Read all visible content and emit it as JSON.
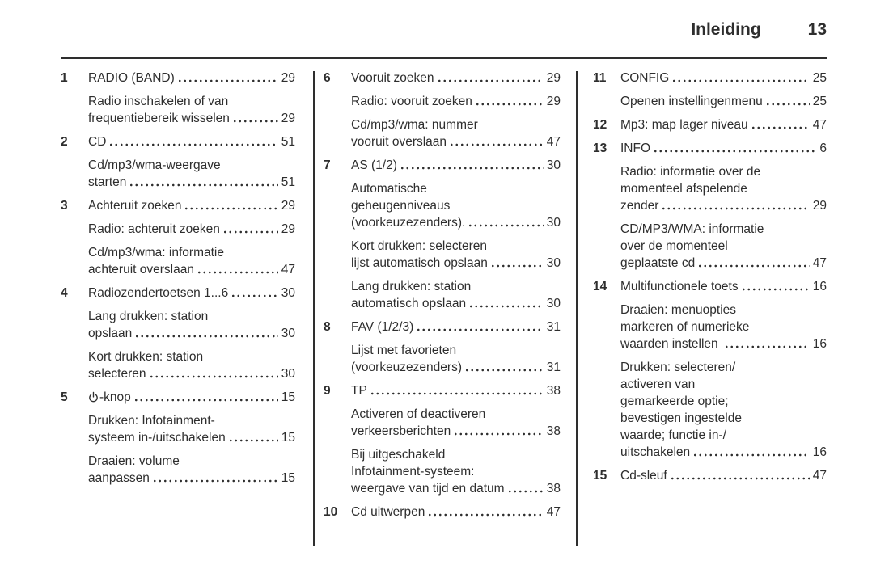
{
  "page_header": {
    "title": "Inleiding",
    "page_number": "13"
  },
  "colors": {
    "text": "#2e2e2e",
    "background": "#ffffff",
    "rule": "#2e2e2e"
  },
  "columns": [
    {
      "items": [
        {
          "num": "1",
          "lines": [
            "RADIO (BAND)"
          ],
          "page": "29"
        },
        {
          "lines": [
            "Radio inschakelen of van",
            "frequentiebereik wisselen"
          ],
          "page": "29"
        },
        {
          "num": "2",
          "lines": [
            "CD"
          ],
          "page": "51"
        },
        {
          "lines": [
            "Cd/mp3/wma-weergave",
            "starten"
          ],
          "page": "51"
        },
        {
          "num": "3",
          "lines": [
            "Achteruit zoeken"
          ],
          "page": "29"
        },
        {
          "lines": [
            "Radio: achteruit zoeken"
          ],
          "page": "29"
        },
        {
          "lines": [
            "Cd/mp3/wma: informatie",
            "achteruit overslaan"
          ],
          "page": "47"
        },
        {
          "num": "4",
          "lines": [
            "Radiozendertoetsen 1...6"
          ],
          "page": "30"
        },
        {
          "lines": [
            "Lang drukken: station",
            "opslaan"
          ],
          "page": "30"
        },
        {
          "lines": [
            "Kort drukken: station",
            "selecteren"
          ],
          "page": "30"
        },
        {
          "num": "5",
          "icon": "power-icon",
          "lines": [
            "-knop"
          ],
          "page": "15"
        },
        {
          "lines": [
            "Drukken: Infotainment-",
            "systeem in-/uitschakelen"
          ],
          "page": "15"
        },
        {
          "lines": [
            "Draaien: volume",
            "aanpassen"
          ],
          "page": "15"
        }
      ]
    },
    {
      "items": [
        {
          "num": "6",
          "lines": [
            "Vooruit zoeken"
          ],
          "page": "29"
        },
        {
          "lines": [
            "Radio: vooruit zoeken"
          ],
          "page": "29"
        },
        {
          "lines": [
            "Cd/mp3/wma: nummer",
            "vooruit overslaan"
          ],
          "page": "47"
        },
        {
          "num": "7",
          "lines": [
            "AS (1/2)"
          ],
          "page": "30"
        },
        {
          "lines": [
            "Automatische",
            "geheugenniveaus",
            "(voorkeuzezenders)."
          ],
          "page": "30"
        },
        {
          "lines": [
            "Kort drukken: selecteren",
            "lijst automatisch opslaan"
          ],
          "page": "30"
        },
        {
          "lines": [
            "Lang drukken: station",
            "automatisch opslaan"
          ],
          "page": "30"
        },
        {
          "num": "8",
          "lines": [
            "FAV (1/2/3)"
          ],
          "page": "31"
        },
        {
          "lines": [
            "Lijst met favorieten",
            "(voorkeuzezenders)"
          ],
          "page": "31"
        },
        {
          "num": "9",
          "lines": [
            "TP"
          ],
          "page": "38"
        },
        {
          "lines": [
            "Activeren of deactiveren",
            "verkeersberichten"
          ],
          "page": "38"
        },
        {
          "lines": [
            "Bij uitgeschakeld",
            "Infotainment-systeem:",
            "weergave van tijd en datum"
          ],
          "page": "38"
        },
        {
          "num": "10",
          "lines": [
            "Cd uitwerpen"
          ],
          "page": "47"
        }
      ]
    },
    {
      "items": [
        {
          "num": "11",
          "lines": [
            "CONFIG"
          ],
          "page": "25"
        },
        {
          "lines": [
            "Openen instellingenmenu"
          ],
          "page": "25"
        },
        {
          "num": "12",
          "lines": [
            "Mp3: map lager niveau"
          ],
          "page": "47"
        },
        {
          "num": "13",
          "lines": [
            "INFO"
          ],
          "page": "6"
        },
        {
          "lines": [
            "Radio: informatie over de",
            "momenteel afspelende",
            "zender"
          ],
          "page": "29"
        },
        {
          "lines": [
            "CD/MP3/WMA: informatie",
            "over de momenteel",
            "geplaatste cd"
          ],
          "page": "47"
        },
        {
          "num": "14",
          "lines": [
            "Multifunctionele toets"
          ],
          "page": "16"
        },
        {
          "lines": [
            "Draaien: menuopties",
            "markeren of numerieke",
            "waarden instellen "
          ],
          "page": "16"
        },
        {
          "lines": [
            "Drukken: selecteren/",
            "activeren van",
            "gemarkeerde optie;",
            "bevestigen ingestelde",
            "waarde; functie in-/",
            "uitschakelen"
          ],
          "page": "16"
        },
        {
          "num": "15",
          "lines": [
            "Cd-sleuf"
          ],
          "page": "47"
        }
      ]
    }
  ]
}
